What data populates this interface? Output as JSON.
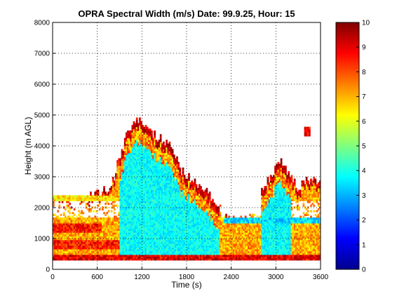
{
  "chart_data": {
    "type": "heatmap",
    "title": "OPRA Spectral Width (m/s)  Date: 99.9.25, Hour: 15",
    "xlabel": "Time (s)",
    "ylabel": "Height (m AGL)",
    "xlim": [
      0,
      3600
    ],
    "ylim": [
      0,
      8000
    ],
    "x_ticks": [
      "0",
      "600",
      "1200",
      "1800",
      "2400",
      "3000",
      "3600"
    ],
    "y_ticks": [
      "0",
      "1000",
      "2000",
      "3000",
      "4000",
      "5000",
      "6000",
      "7000",
      "8000"
    ],
    "grid": true,
    "colorbar": {
      "min": 0,
      "max": 10,
      "ticks": [
        "0",
        "1",
        "2",
        "3",
        "4",
        "5",
        "6",
        "7",
        "8",
        "9",
        "10"
      ],
      "colormap": "jet"
    },
    "echo_top_profile": {
      "time_s": [
        0,
        100,
        300,
        600,
        750,
        850,
        950,
        1000,
        1100,
        1200,
        1300,
        1400,
        1500,
        1600,
        1700,
        1800,
        1900,
        2000,
        2100,
        2200,
        2300,
        2400,
        2500,
        2600,
        2700,
        2800,
        2900,
        3000,
        3050,
        3100,
        3200,
        3300,
        3400,
        3500,
        3600
      ],
      "top_height_m": [
        2300,
        2300,
        2300,
        2400,
        2600,
        3200,
        4000,
        4400,
        4700,
        4800,
        4600,
        4300,
        4100,
        3900,
        3300,
        3000,
        2900,
        2700,
        2400,
        2100,
        2000,
        1700,
        1700,
        2000,
        2300,
        2600,
        2900,
        3300,
        3600,
        3400,
        3000,
        2600,
        2900,
        3000,
        2800
      ]
    },
    "low_level_bands": [
      {
        "height_m": [
          300,
          500
        ],
        "time_s": [
          0,
          3600
        ],
        "width_ms": 9.0
      },
      {
        "height_m": [
          650,
          950
        ],
        "time_s": [
          0,
          900
        ],
        "width_ms": 8.5
      },
      {
        "height_m": [
          1200,
          1500
        ],
        "time_s": [
          0,
          650
        ],
        "width_ms": 8.5
      },
      {
        "height_m": [
          1500,
          1700
        ],
        "time_s": [
          2300,
          3600
        ],
        "width_ms": 3.5
      },
      {
        "height_m": [
          2200,
          2400
        ],
        "time_s": [
          0,
          850
        ],
        "width_ms": 6.5
      }
    ],
    "isolated_echo": {
      "time_s": [
        3380,
        3460
      ],
      "height_m": [
        4350,
        4600
      ],
      "width_ms": 8.0
    }
  }
}
